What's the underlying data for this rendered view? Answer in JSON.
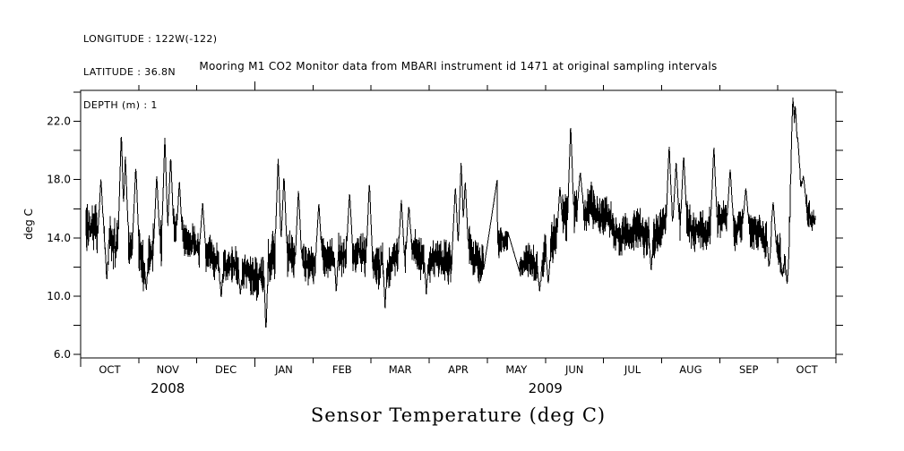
{
  "header": {
    "longitude": "LONGITUDE : 122W(-122)",
    "latitude": "LATITUDE : 36.8N",
    "depth": "DEPTH (m) : 1"
  },
  "chart_data": {
    "type": "line",
    "title": "Mooring M1 CO2 Monitor data from MBARI instrument id 1471 at original sampling intervals",
    "figure_caption": "Sensor Temperature (deg C)",
    "ylabel": "deg C",
    "xlabel": "",
    "colors": {
      "line": "#000000",
      "background": "#ffffff",
      "text": "#000000"
    },
    "ylim": [
      5.75,
      24.13
    ],
    "yticks_all": [
      6,
      8,
      10,
      12,
      14,
      16,
      18,
      20,
      22,
      24
    ],
    "yticks_labeled": [
      {
        "value": 6,
        "label": "6.0"
      },
      {
        "value": 10,
        "label": "10.0"
      },
      {
        "value": 14,
        "label": "14.0"
      },
      {
        "value": 18,
        "label": "18.0"
      },
      {
        "value": 22,
        "label": "22.0"
      }
    ],
    "x_total_months": 13,
    "x_month_labels": [
      "OCT",
      "NOV",
      "DEC",
      "JAN",
      "FEB",
      "MAR",
      "APR",
      "MAY",
      "JUN",
      "JUL",
      "AUG",
      "SEP",
      "OCT"
    ],
    "year_labels": [
      {
        "text": "2008",
        "t": 1.5
      },
      {
        "text": "2009",
        "t": 8.0
      }
    ],
    "legend": "none",
    "grid": false,
    "series": {
      "name": "Sensor Temperature (deg C)",
      "units": "deg C",
      "t_start": 0.09,
      "t_end": 12.645,
      "samples": 1700,
      "noise_seed": 913,
      "base_envelope": [
        [
          0.09,
          14.8,
          1.7
        ],
        [
          0.35,
          14.0,
          2.0
        ],
        [
          0.6,
          13.7,
          1.9
        ],
        [
          0.9,
          14.0,
          2.0
        ],
        [
          1.12,
          12.7,
          1.6
        ],
        [
          1.35,
          13.8,
          1.9
        ],
        [
          1.55,
          14.3,
          1.9
        ],
        [
          1.8,
          13.7,
          1.5
        ],
        [
          2.05,
          13.4,
          1.4
        ],
        [
          2.3,
          12.3,
          1.3
        ],
        [
          2.6,
          11.7,
          1.2
        ],
        [
          2.9,
          11.7,
          1.4
        ],
        [
          3.12,
          11.3,
          1.6
        ],
        [
          3.4,
          13.3,
          1.9
        ],
        [
          3.65,
          12.7,
          1.7
        ],
        [
          3.95,
          12.3,
          1.4
        ],
        [
          4.25,
          12.7,
          1.5
        ],
        [
          4.55,
          13.2,
          1.4
        ],
        [
          4.85,
          12.7,
          1.4
        ],
        [
          5.15,
          12.3,
          1.5
        ],
        [
          5.45,
          12.5,
          1.5
        ],
        [
          5.75,
          12.9,
          1.5
        ],
        [
          6.05,
          12.5,
          1.4
        ],
        [
          6.35,
          12.9,
          1.5
        ],
        [
          6.62,
          13.3,
          1.6
        ],
        [
          6.9,
          12.3,
          1.3
        ],
        [
          7.25,
          14.0,
          1.2
        ],
        [
          7.6,
          11.9,
          1.1
        ],
        [
          7.92,
          11.9,
          1.3
        ],
        [
          8.2,
          13.7,
          1.7
        ],
        [
          8.45,
          15.6,
          1.8
        ],
        [
          8.7,
          16.2,
          1.5
        ],
        [
          9.0,
          15.4,
          1.4
        ],
        [
          9.3,
          14.5,
          1.4
        ],
        [
          9.6,
          14.1,
          1.5
        ],
        [
          9.9,
          14.3,
          1.6
        ],
        [
          10.2,
          15.1,
          1.7
        ],
        [
          10.5,
          15.0,
          1.5
        ],
        [
          10.8,
          15.2,
          1.5
        ],
        [
          11.1,
          15.2,
          1.4
        ],
        [
          11.4,
          14.9,
          1.4
        ],
        [
          11.7,
          14.3,
          1.4
        ],
        [
          12.0,
          13.3,
          1.5
        ],
        [
          12.18,
          12.8,
          1.4
        ],
        [
          12.22,
          15.0,
          3.0
        ],
        [
          12.26,
          18.5,
          4.5
        ],
        [
          12.31,
          19.5,
          3.0
        ],
        [
          12.36,
          18.0,
          1.8
        ],
        [
          12.42,
          16.8,
          1.5
        ],
        [
          12.5,
          15.8,
          1.3
        ],
        [
          12.58,
          15.0,
          1.0
        ],
        [
          12.645,
          14.9,
          0.6
        ]
      ],
      "spikes": [
        [
          0.35,
          18.1
        ],
        [
          0.7,
          21.4
        ],
        [
          0.77,
          19.6
        ],
        [
          0.95,
          19.0
        ],
        [
          1.31,
          18.3
        ],
        [
          1.45,
          20.9
        ],
        [
          1.55,
          19.7
        ],
        [
          1.7,
          17.9
        ],
        [
          2.1,
          16.4
        ],
        [
          3.4,
          19.5
        ],
        [
          3.5,
          18.4
        ],
        [
          3.75,
          17.4
        ],
        [
          4.1,
          16.5
        ],
        [
          4.63,
          17.2
        ],
        [
          4.97,
          17.9
        ],
        [
          5.52,
          16.7
        ],
        [
          5.65,
          16.3
        ],
        [
          6.45,
          17.6
        ],
        [
          6.55,
          19.3
        ],
        [
          6.62,
          18.0
        ],
        [
          8.25,
          17.6
        ],
        [
          8.435,
          21.8
        ],
        [
          8.6,
          18.6
        ],
        [
          10.13,
          20.5
        ],
        [
          10.25,
          19.2
        ],
        [
          10.38,
          19.8
        ],
        [
          10.9,
          20.3
        ],
        [
          11.18,
          18.8
        ],
        [
          11.45,
          17.5
        ],
        [
          11.92,
          16.5
        ],
        [
          12.26,
          23.7
        ],
        [
          12.3,
          23.2
        ],
        [
          12.34,
          21.0
        ],
        [
          12.44,
          18.3
        ]
      ],
      "dips": [
        [
          0.45,
          11.0
        ],
        [
          1.13,
          10.3
        ],
        [
          2.42,
          9.8
        ],
        [
          2.75,
          10.1
        ],
        [
          3.19,
          7.4
        ],
        [
          4.4,
          10.2
        ],
        [
          5.24,
          9.1
        ],
        [
          5.95,
          10.1
        ],
        [
          7.9,
          10.3
        ],
        [
          8.05,
          10.8
        ],
        [
          9.82,
          11.6
        ],
        [
          11.85,
          11.9
        ],
        [
          12.08,
          11.2
        ],
        [
          12.16,
          10.7
        ]
      ],
      "gap_segments": [
        [
          [
            6.94,
            11.9
          ],
          [
            7.17,
            18.0
          ]
        ],
        [
          [
            7.36,
            14.3
          ],
          [
            7.56,
            11.6
          ]
        ]
      ]
    }
  }
}
